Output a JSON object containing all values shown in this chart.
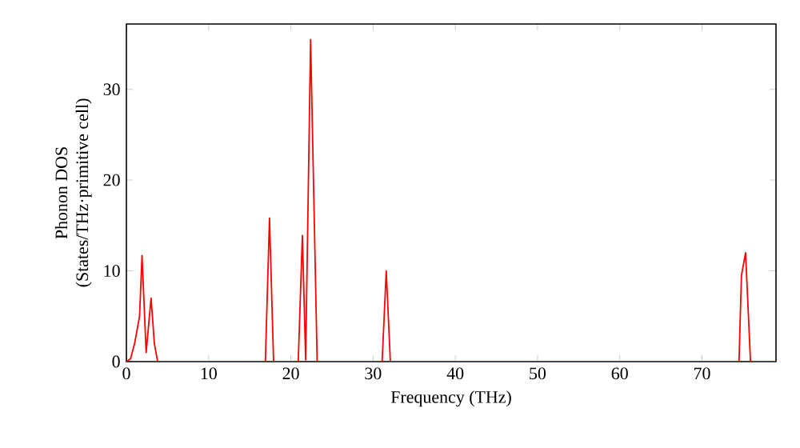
{
  "chart_data": {
    "type": "line",
    "xlabel": "Frequency (THz)",
    "ylabel": "Phonon DOS\n(States/THz·primitive cell)",
    "x": [
      0,
      0.5,
      1.0,
      1.6,
      1.9,
      2.4,
      3.0,
      3.4,
      3.8,
      16.9,
      17.4,
      17.9,
      20.9,
      21.4,
      21.8,
      22.4,
      23.2,
      31.1,
      31.6,
      32.1,
      74.5,
      74.8,
      75.3,
      75.9,
      79
    ],
    "series": [
      {
        "color": "#ff0000",
        "values": [
          0,
          0.3,
          2,
          5,
          11.7,
          1,
          7,
          2,
          0,
          0,
          15.8,
          0,
          0,
          13.9,
          0.2,
          35.5,
          0,
          0,
          10,
          0,
          0,
          9.5,
          12,
          0,
          0
        ]
      }
    ],
    "xlim": [
      0,
      79
    ],
    "ylim": [
      0,
      37.2
    ],
    "xticks": [
      0,
      10,
      20,
      30,
      40,
      50,
      60,
      70
    ],
    "yticks": [
      0,
      10,
      20,
      30
    ],
    "grid": false,
    "marker": "none",
    "line_style": "solid"
  }
}
